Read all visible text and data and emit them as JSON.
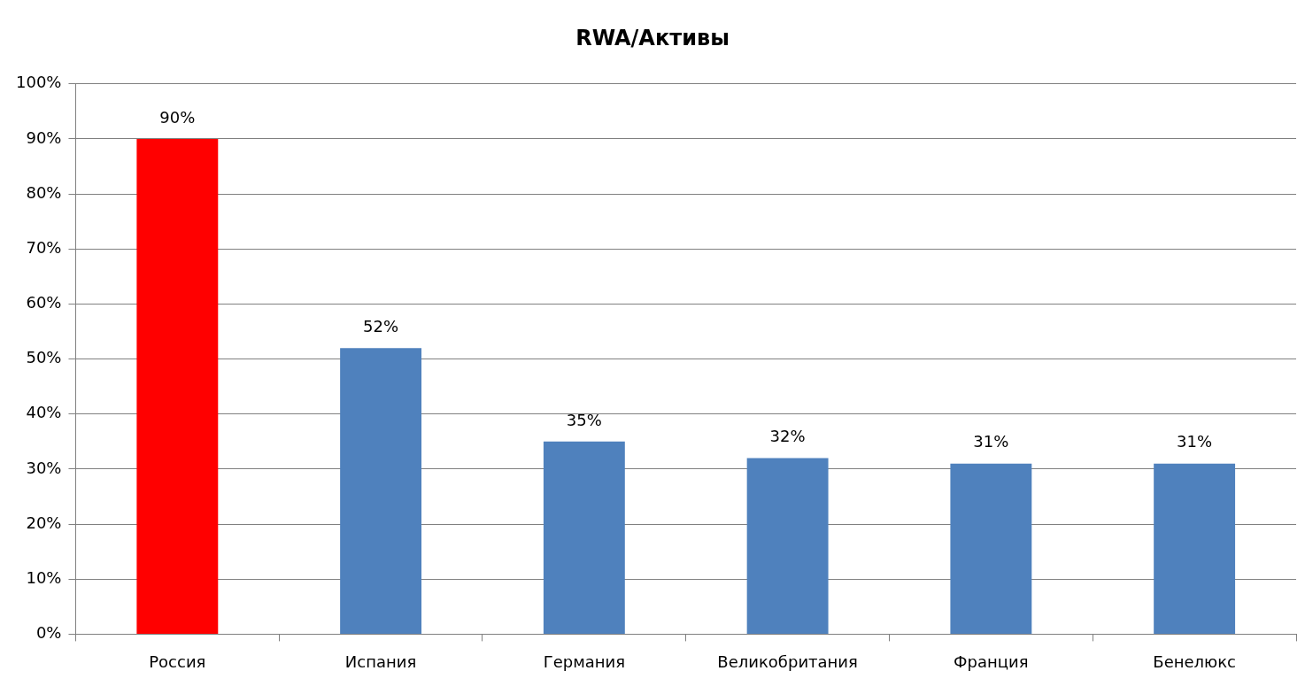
{
  "chart_data": {
    "type": "bar",
    "title": "RWA/Активы",
    "categories": [
      "Россия",
      "Испания",
      "Германия",
      "Великобритания",
      "Франция",
      "Бенелюкс"
    ],
    "values": [
      90,
      52,
      35,
      32,
      31,
      31
    ],
    "colors": [
      "#ff0000",
      "#4f81bd",
      "#4f81bd",
      "#4f81bd",
      "#4f81bd",
      "#4f81bd"
    ],
    "value_labels": [
      "90%",
      "52%",
      "35%",
      "32%",
      "31%",
      "31%"
    ],
    "ylim": [
      0,
      100
    ],
    "yticks": [
      {
        "value": 0,
        "label": "0%"
      },
      {
        "value": 10,
        "label": "10%"
      },
      {
        "value": 20,
        "label": "20%"
      },
      {
        "value": 30,
        "label": "30%"
      },
      {
        "value": 40,
        "label": "40%"
      },
      {
        "value": 50,
        "label": "50%"
      },
      {
        "value": 60,
        "label": "60%"
      },
      {
        "value": 70,
        "label": "70%"
      },
      {
        "value": 80,
        "label": "80%"
      },
      {
        "value": 90,
        "label": "90%"
      },
      {
        "value": 100,
        "label": "100%"
      }
    ],
    "grid": "y",
    "legend": false
  }
}
